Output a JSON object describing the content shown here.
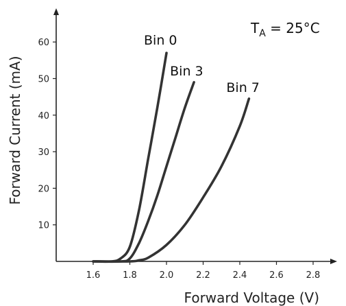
{
  "chart_data": {
    "type": "line",
    "title": "",
    "xlabel": "Forward Voltage (V)",
    "ylabel": "Forward Current (mA)",
    "xlim": [
      1.4,
      2.9
    ],
    "ylim": [
      0,
      68
    ],
    "xticks": [
      1.6,
      1.8,
      2.0,
      2.2,
      2.4,
      2.6,
      2.8
    ],
    "xtick_labels": [
      "1.6",
      "1.8",
      "2.0",
      "2.2",
      "2.4",
      "2.6",
      "2.8"
    ],
    "yticks": [
      10,
      20,
      30,
      40,
      50,
      60
    ],
    "ytick_labels": [
      "10",
      "20",
      "30",
      "40",
      "50",
      "60"
    ],
    "grid": false,
    "legend": "none",
    "annotation": {
      "main": "T",
      "sub": "A",
      "rest": " = 25°C"
    },
    "series": [
      {
        "name": "Bin 0",
        "x": [
          1.6,
          1.7,
          1.75,
          1.8,
          1.85,
          1.9,
          1.95,
          2.0
        ],
        "y": [
          0,
          0,
          0.8,
          4,
          14,
          28,
          42,
          57
        ]
      },
      {
        "name": "Bin 3",
        "x": [
          1.6,
          1.75,
          1.8,
          1.85,
          1.9,
          1.95,
          2.0,
          2.05,
          2.1,
          2.15
        ],
        "y": [
          0,
          0,
          0.8,
          5,
          11,
          18,
          26,
          34,
          42,
          49
        ]
      },
      {
        "name": "Bin 7",
        "x": [
          1.6,
          1.8,
          1.85,
          1.9,
          2.0,
          2.1,
          2.2,
          2.3,
          2.4,
          2.45
        ],
        "y": [
          0,
          0,
          0.3,
          1,
          4.5,
          10,
          17.5,
          26,
          37,
          44.5
        ]
      }
    ]
  }
}
